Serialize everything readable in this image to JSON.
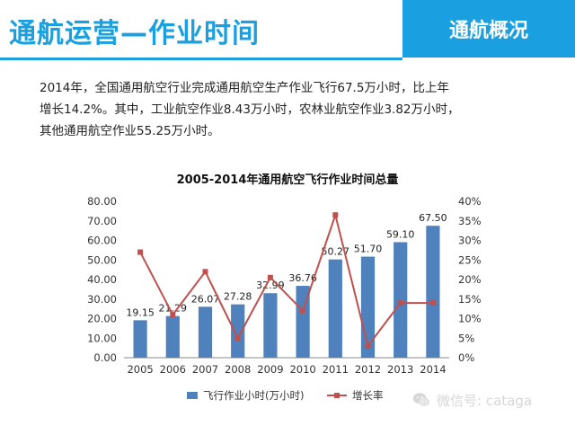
{
  "header": {
    "title": "通航运营—作业时间",
    "badge": "通航概况"
  },
  "intro": {
    "line1": "2014年，全国通用航空行业完成通用航空生产作业飞行67.5万小时，比上年",
    "line2": "增长14.2%。其中，工业航空作业8.43万小时，农林业航空作业3.82万小时，",
    "line3": "其他通用航空作业55.25万小时。"
  },
  "watermark": {
    "text": "微信号: cataga",
    "icon": "wechat-icon"
  },
  "colors": {
    "accent": "#1aa0e0",
    "bar": "#4f81bd",
    "line": "#c0504d"
  },
  "chart_data": {
    "type": "bar",
    "title": "2005-2014年通用航空飞行作业时间总量",
    "categories": [
      "2005",
      "2006",
      "2007",
      "2008",
      "2009",
      "2010",
      "2011",
      "2012",
      "2013",
      "2014"
    ],
    "series": [
      {
        "name": "飞行作业小时(万小时)",
        "type": "bar",
        "axis": "left",
        "values": [
          19.15,
          21.29,
          26.07,
          27.28,
          32.99,
          36.76,
          50.27,
          51.7,
          59.1,
          67.5
        ],
        "labels": [
          "19.15",
          "21.29",
          "26.07",
          "27.28",
          "32.99",
          "36.76",
          "50.27",
          "51.70",
          "59.10",
          "67.50"
        ]
      },
      {
        "name": "增长率",
        "type": "line",
        "axis": "right",
        "values": [
          27,
          11,
          22,
          5,
          20.5,
          12,
          36.5,
          3,
          14,
          14
        ]
      }
    ],
    "y_left": {
      "min": 0,
      "max": 80,
      "step": 10,
      "ticks": [
        "0.00",
        "10.00",
        "20.00",
        "30.00",
        "40.00",
        "50.00",
        "60.00",
        "70.00",
        "80.00"
      ]
    },
    "y_right": {
      "min": 0,
      "max": 40,
      "step": 5,
      "ticks": [
        "0%",
        "5%",
        "10%",
        "15%",
        "20%",
        "25%",
        "30%",
        "35%",
        "40%"
      ]
    },
    "grid": false,
    "legend_position": "bottom"
  }
}
